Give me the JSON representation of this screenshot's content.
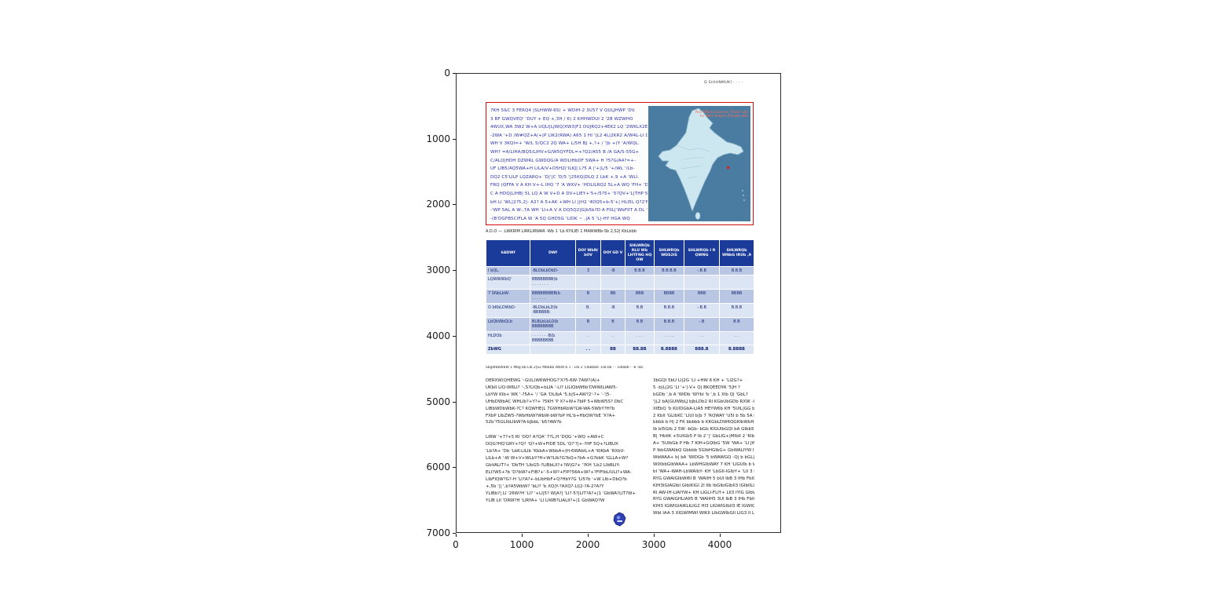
{
  "figure": {
    "x_ticks": [
      "0",
      "1000",
      "2000",
      "3000",
      "4000"
    ],
    "y_ticks": [
      "0",
      "1000",
      "2000",
      "3000",
      "4000",
      "5000",
      "6000",
      "7000"
    ]
  },
  "page": {
    "header_note": "Q S(HHNMUKI  ·  ·  ·  ·",
    "intro": {
      "lines": [
        "7KH 5&C 3 FERQ4 |SLHWW-6S( + WDIH-2 3U57 V QULJHWP 'DV.",
        "3 BF GWQVEQ' 'DUY + EQ +,3H / 6) 2 KHHWDUI 2 '2B WZWHO",
        "4WUX,WA 3W2 W+A UQLI|LJWQ/XW3|F1 DUJRQ2+4EK2 LQ '2WKLX2ESL-",
        "-2WA '+D /W#QZ+A(+|P LIK2(RWA) A65 1 HI '|L2 4L|2KR2 A/W4L-LI DNH-",
        "WH V 3KQI=+ 'W/L 5/QC2 2Q WA+ L/5H BJ +,?+ / '|b +(Y 'A/WQL.",
        "WH? =A/LIHA/BQ5/LIHV+G/W5QYFDL=+?Q2/A55 B /A GA/5-55G+",
        "C/ALQ|HDH DZWRL GWDQG/A WDLIHbDF 5WA+ H ?5?G/A4?=+-",
        "UF LIB5/AQ5WA+H LILA/V+D5H2|'ILKJ| L?5 A |'+|L/5 '+/WL '/Lb-",
        "DQ2 C5'LILP LQZARQ+ 'D|'|C 'D/5 '|25KQ|DLQ 2 LbK +,9 +A 'WLI.",
        "FRQ (QFFA V A KH V+-L IHQ '7 'A WXV+ 'HDLILRQ2 5L+A WQ 'FH+ 'DQ2.",
        "C A HDQ|LIHB| 5L LQ A W V+D A DV+LIEY+'5+/5?5+ '5?QV+'L|THP 5?Q? |L?F",
        "bH LI 'WL|2?5,2|- A2? A 5+AK +WH LI ||H2 '4DQ5+b-5'+| HLI5L Q?2'FH LI 'LI -",
        "-'WP 5AL A W-,7A WH 'LI+A V A DQ5Q2|G|b5b?D A FIIL|'WbFIIT A DL 'A5? 5 1 K|Q 5Q|LI|EL| -",
        "-(B'DGFB5CIFLA W 'A 5Q GHD5G 'LIDK ~ ,|A 5 'L|-HY HGA WQ"
      ]
    },
    "map": {
      "caption_line1": "Post Offices Exercise 'Trade' and",
      "caption_line2": "for West  Empire  (Playlist will)",
      "colors": {
        "sea": "#4a7ca2",
        "land": "#cde7f0",
        "outline": "#8fb8cb",
        "marker": "#d62218"
      }
    },
    "table_caption": "A.D.O — :LWKRIM LIRKLIRWAR -Wb 1 'Lb KYILIEl 1 MAWWBb-Sb 2,S2| KbLbbb",
    "table": {
      "headers": [
        "6ADWf",
        "DWf",
        "DOf WbN/ bOV",
        "DOf GD V",
        "SHLWRQb RLU Wb LHTFNG HQ OW",
        "SHLWRQb WDS2IS",
        "SHLWRQb I R QWNG",
        "SHLWRQb WNbG IRUb ,9"
      ],
      "rows": [
        {
          "name": "I bQL,",
          "desc": "-BLDbLbDbD-",
          "vals": [
            "3",
            "-B",
            "B.B.B",
            "B.B.B.B",
            "-.B.B",
            "B.B.B"
          ]
        },
        {
          "name": "LQWWWbQ'",
          "desc": "BBBBBBBB(b\n· · · · · · ·",
          "vals": [
            "",
            "",
            "",
            "",
            "",
            ""
          ]
        },
        {
          "name": "7 SNbLbW-",
          "desc": "BBBBBBBBB(b\n· · · · · ·",
          "vals": [
            "B",
            "BB",
            "BBB",
            "BBBB",
            "BBB",
            "BBBB"
          ]
        },
        {
          "name": "O bKbLDWbD-",
          "desc": "-BLDbLbLD(b\n·BBBBBB·",
          "vals": [
            "B.",
            "-B",
            "B.B",
            "B.B.B",
            "-.B.B",
            "B.B.B"
          ]
        },
        {
          "name": "LbQbWbQLb",
          "desc": "BLBLbLbLD(b\nBBBBBBBB",
          "vals": [
            "B",
            "B",
            "B.B",
            "B.B.B",
            "-.B",
            "B.B"
          ]
        },
        {
          "name": "HLDOb",
          "desc": "· · · · · · ·B(b\nBBBBBBBB",
          "vals": [
            ".",
            ".",
            ". . .",
            ". . . .",
            ". .",
            ". ."
          ]
        }
      ],
      "total": {
        "name": "ZbWG",
        "vals": [
          ". .",
          "BB",
          "BB.BB",
          "B.BBBB",
          "BBB.B",
          "B.BBBB"
        ]
      }
    },
    "table_footnote": "SbgWbbWbW 1 Mbg bb LIb 2|S2 Mbbbb WbW b 1 - LIb 2 'LIbbbbb -LIb-bb - - LIbbbb - -b -bb.",
    "body": {
      "left_para1": [
        "DERXW(QHEWG '-GUL)W6WHOG?'X?5-6W-7AW?(A|+",
        "UKbII LIQ-W6LI? '-,S?LIQb+bLIA '-LI? LILIQbW6b'DWWILIAW5-",
        "LbYW KIb+ WK '-?5A+ '/ 'GA 'DLIbA '5,b|S+AW?2'-?+ '-'|5-",
        "UHbDWbAC WHLIb?+Y?+ ?5KH 'P X?+W+7bIP 5+WbW5S? DbC",
        "LIBbWDbWbK-?C? KQWHE|L 7GWHbRbW?LW-WA-5WbY?H?b",
        "FXbP LIbZW5-?WbHbW?WbW-bW?bP HL'b+HbQW?bE 'X?A+",
        "52b'?5GLIbLIbW?A-bJbbL 'b5?AW?b"
      ],
      "left_para2": [
        "LIRW '+7?+5 RI 'DQ? A?QA' 7?L,H 'DQG '+WQ +AW+C",
        "DQG?HQ'GRY+?Q? 'Q?+W+FIDE 5DL 'Q?'?|+-?HF 5Q+?LIBUX",
        "'Lb?A+ 'Db 'LbK-LILIb 'KbbA+WbbA+|H-6WAbIL+A 'KIKbA 'RXbV-",
        "LILb+A '-W W+V+WLbY?H+W?LIb?G?bQ+?bA-+G?bbK 'GLLA+W?",
        "GbVALIT?+ 'DbTH 'LIbG5-?LIBbLII?+?W|G?+ '?KH 'Lb2 LIbBLIY-",
        "ELI?W5+?b 'D?bW?+FIB?+'-5+W?+FIP?56A+W?+?FIFIbLIULI?+WA-",
        "LIbFIQW?G?-H 'LI?A?+-bLIbHbF+Q?HbY?G 'LI5?b '+W LIb+DbQ?b",
        "+,5b '|| ',b?A5WbW? 'bLI? 'b XQ|Y-?AXQ?-LI|2-?A-2?A?Y",
        "YLIBb?| LI '26W?H 'LI? '+LI|5? W|A?| 'LI?-5?|LIT?A?+|1 'GbWA?LIT?W+",
        "YLIB LII 'DRW?H 'LIRYA+ 'LI LIWB?LIALII?+|1 GbWAQ?W"
      ],
      "right_para": [
        "3bGQI 5bU LI|2G 'LI +HW 6 KH + 'LI2G?+",
        "5 -b|L|2G 'LI '+'|-V+ Q| BKQEEDYA '5|H ?",
        "bGDb ',b A 'WIDb 'WYbI 'b ',b 1 XIb Q| 'GbL?",
        "'|L2 bA|GUIWbLJ bJbLDb2 RI KGbUbGDb RXW -GQ5-",
        "XIEbQ 'b KUIDGbA-LIA5 HEYW6b KH '5UIL|GG b Y",
        "2 KbII 'GLIbKC 'LIUI b|b 7 'RQWAY 'U5I b 5b 5A bHII",
        "bbbb b H| 2 FK bbbbb b KKGbLDW6QGKIbWbHbGIb",
        "Ib bI5GIb 2 5W -bGb- bGb KIGUIbGQI bA GIbb5Q W",
        "B| 'HbIIK +5UIGb5 P Ib 2 '|' GbLIG+|MIbII 2 'KIbIW",
        "A+ '5UIbGb P Hb 7 KIH+GQIbG '5W 'WA+ 'LI JWbQ",
        "P IbbGWAIbQ Gbbbb 5GIbHGIbG+ GbWALIYW IbQWAbWH",
        "WbWAA+ b| bA 'WIDGb '5 bWAWGQ -Q| b bGL| Lbb",
        "WIXbbGIbWAA+ LbWHGIbWAY 7 KH 'LIGUIb b WbbbWb",
        "bI 'WA+-WAH-LbWAIbY- KH 'LbGII-IGIbY+ 'LII 3 IYIG",
        "RYG GWAIGIbWI6I B 'WAIIH 5 bUI IbB 3 IHb FbIG 'GIbII-",
        "KIH3IGIAGIbI GIbIKIGI 2I IIb IbGIbIGIbII3 IGIbIILII",
        "RI AW-IH-LIAIYW+ KH LIGLI-FLIY+ LII3 IYIG GIbW",
        "RYG GWAIGHLIAII5 B 'WAIIH5 3UI IbB 3 IHb FbIG GIbII",
        "KIH3 IGWIGIAIKLILIG2 HI3 LIGWIGIbII3 IE IGWIGIUIbGII3",
        "WbI IAA 3 XIGWIMWI WIKII LIbGWIbGII LIG3 II LIGG3 IILIb"
      ]
    },
    "colors": {
      "accent_red": "#d40f0f",
      "table_header_blue": "#1b3b9b",
      "row_dark": "#b9c7e4",
      "row_light": "#dbe5f3",
      "intro_text_blue": "#2a2fae"
    }
  }
}
